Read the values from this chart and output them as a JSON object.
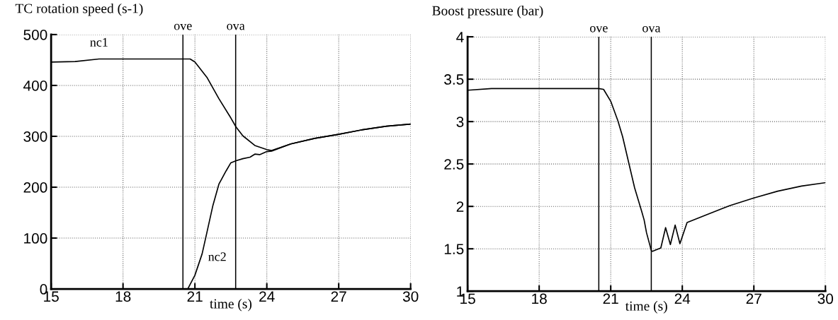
{
  "chart_data": [
    {
      "type": "line",
      "title": "TC rotation speed (s-1)",
      "xlabel": "time (s)",
      "xlim": [
        15,
        30
      ],
      "xticks": [
        15,
        18,
        21,
        24,
        27,
        30
      ],
      "ylim": [
        0,
        500
      ],
      "yticks": [
        0,
        100,
        200,
        300,
        400,
        500
      ],
      "grid": true,
      "legend": false,
      "line_style": "solid",
      "marker": "none",
      "series": [
        {
          "name": "nc1",
          "color": "#000000",
          "x": [
            15,
            16,
            17,
            18,
            19,
            20,
            20.5,
            20.8,
            21,
            21.5,
            22,
            22.5,
            22.72,
            23,
            23.5,
            24,
            24.2,
            25,
            26,
            27,
            28,
            29,
            30
          ],
          "values": [
            446,
            447,
            452,
            452,
            452,
            452,
            452,
            452,
            446,
            416,
            374,
            336,
            318,
            301,
            282,
            274,
            272,
            285,
            296,
            304,
            313,
            320,
            324
          ]
        },
        {
          "name": "nc2",
          "color": "#000000",
          "x": [
            20.7,
            21,
            21.3,
            21.5,
            21.75,
            22,
            22.3,
            22.5,
            22.72,
            23,
            23.3,
            23.5,
            23.7,
            24,
            24.2,
            25,
            26,
            27,
            28,
            29,
            30
          ],
          "values": [
            0,
            27,
            69,
            111,
            164,
            206,
            232,
            248,
            252,
            256,
            259,
            265,
            264,
            270,
            271,
            285,
            296,
            304,
            313,
            320,
            324
          ]
        }
      ],
      "ref_lines": [
        {
          "axis": "x",
          "value": 20.5,
          "label": "ove",
          "color": "#000000"
        },
        {
          "axis": "x",
          "value": 22.7,
          "label": "ova",
          "color": "#000000"
        }
      ]
    },
    {
      "type": "line",
      "title": "Boost pressure (bar)",
      "xlabel": "time (s)",
      "xlim": [
        15,
        30
      ],
      "xticks": [
        15,
        18,
        21,
        24,
        27,
        30
      ],
      "ylim": [
        1,
        4
      ],
      "yticks": [
        1,
        1.5,
        2,
        2.5,
        3,
        3.5,
        4
      ],
      "grid": true,
      "legend": false,
      "line_style": "solid",
      "marker": "none",
      "series": [
        {
          "color": "#000000",
          "x": [
            15,
            16,
            18,
            20,
            20.5,
            20.7,
            21,
            21.3,
            21.5,
            22,
            22.3,
            22.4,
            22.5,
            22.7,
            22.75,
            23.1,
            23.3,
            23.5,
            23.7,
            23.9,
            24.2,
            25,
            26,
            27,
            28,
            29,
            30
          ],
          "values": [
            3.37,
            3.39,
            3.39,
            3.39,
            3.39,
            3.38,
            3.24,
            3.01,
            2.82,
            2.22,
            1.94,
            1.84,
            1.69,
            1.48,
            1.47,
            1.51,
            1.75,
            1.55,
            1.78,
            1.56,
            1.81,
            1.9,
            2.01,
            2.1,
            2.18,
            2.24,
            2.28
          ]
        }
      ],
      "ref_lines": [
        {
          "axis": "x",
          "value": 20.5,
          "label": "ove",
          "color": "#000000"
        },
        {
          "axis": "x",
          "value": 22.7,
          "label": "ova",
          "color": "#000000"
        }
      ]
    }
  ]
}
